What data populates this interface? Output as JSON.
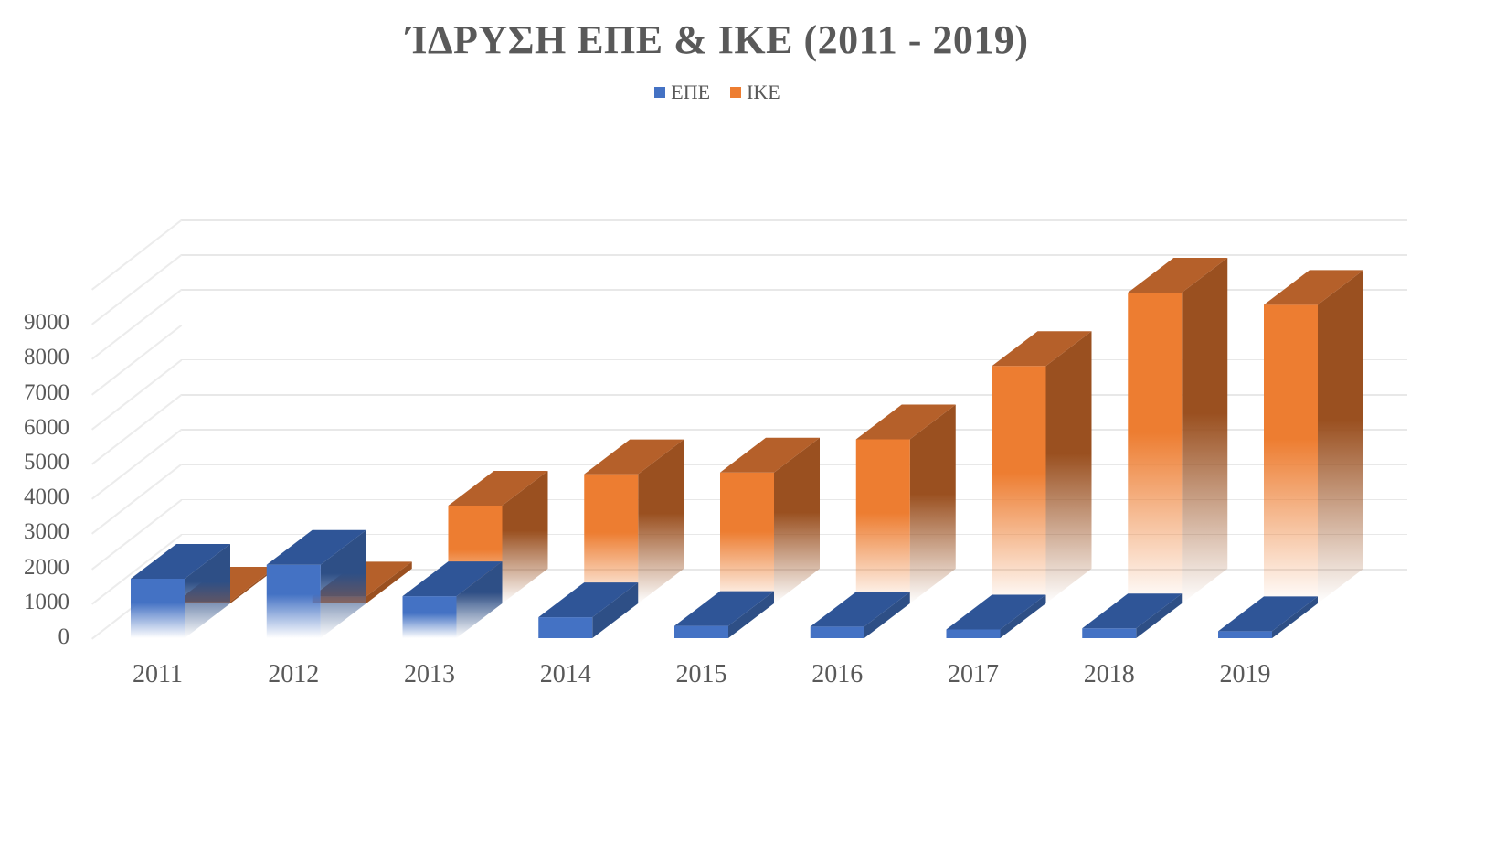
{
  "title": "ΊΔΡΥΣΗ ΕΠΕ & ΙΚΕ (2011 - 2019)",
  "legend": [
    {
      "label": "ΕΠΕ",
      "color": "#4472C4"
    },
    {
      "label": "ΙΚΕ",
      "color": "#ED7D31"
    }
  ],
  "colors": {
    "epe_front": "#4472C4",
    "epe_top": "#2F5597",
    "epe_side": "#2E4F86",
    "ike_front": "#ED7D31",
    "ike_top": "#B5602A",
    "ike_side": "#9A5020",
    "grid": "#E8E8E8",
    "text": "#595959"
  },
  "y_ticks": [
    "0",
    "1000",
    "2000",
    "3000",
    "4000",
    "5000",
    "6000",
    "7000",
    "8000",
    "9000"
  ],
  "chart_data": {
    "type": "bar",
    "subtype": "3d-clustered-column",
    "title": "ΊΔΡΥΣΗ ΕΠΕ & ΙΚΕ (2011 - 2019)",
    "categories": [
      "2011",
      "2012",
      "2013",
      "2014",
      "2015",
      "2016",
      "2017",
      "2018",
      "2019"
    ],
    "series": [
      {
        "name": "ΕΠΕ",
        "color": "#4472C4",
        "values": [
          1700,
          2100,
          1200,
          600,
          350,
          330,
          250,
          280,
          200
        ]
      },
      {
        "name": "ΙΚΕ",
        "color": "#ED7D31",
        "values": [
          50,
          200,
          2800,
          3700,
          3750,
          4700,
          6800,
          8900,
          8550
        ]
      }
    ],
    "xlabel": "",
    "ylabel": "",
    "ylim": [
      0,
      10000
    ],
    "y_tick_step": 1000,
    "grid": true,
    "legend_position": "top"
  }
}
